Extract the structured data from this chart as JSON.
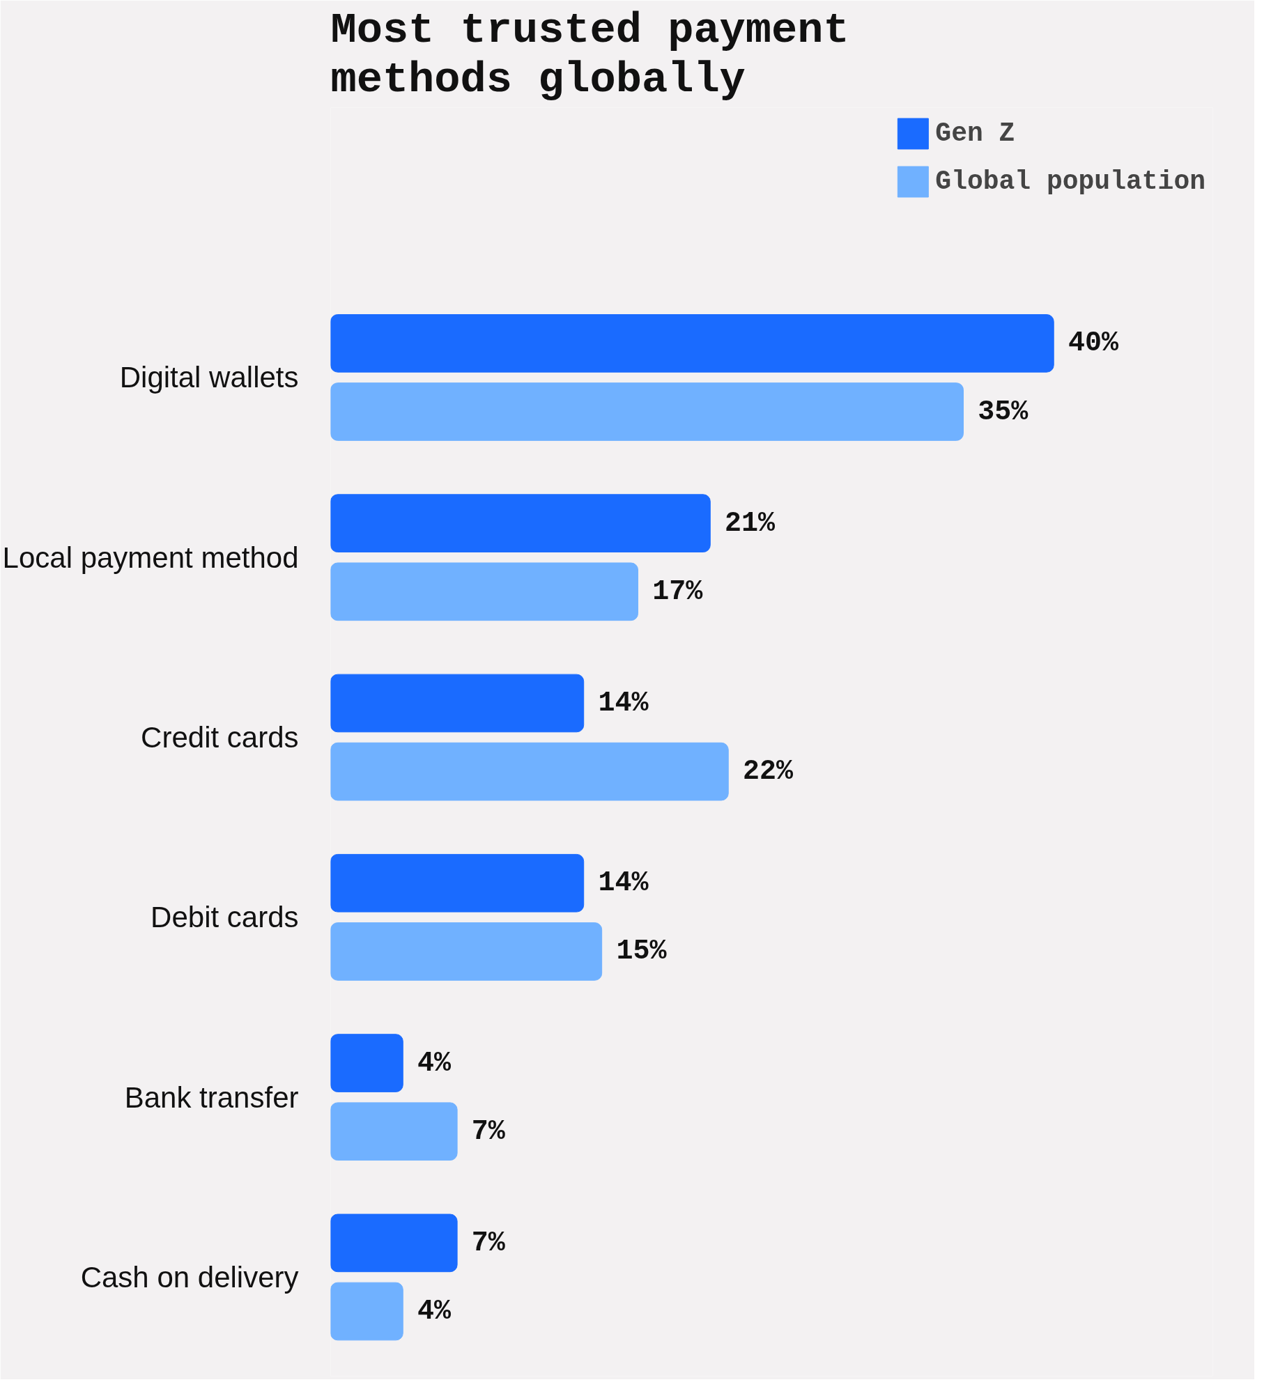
{
  "chart_data": {
    "type": "bar",
    "orientation": "horizontal",
    "title": "Most trusted payment methods globally",
    "categories": [
      "Digital wallets",
      "Local payment method",
      "Credit cards",
      "Debit cards",
      "Bank transfer",
      "Cash on delivery"
    ],
    "series": [
      {
        "name": "Gen Z",
        "color": "#1a6bff",
        "values": [
          40,
          21,
          14,
          14,
          4,
          7
        ],
        "value_labels": [
          "40%",
          "21%",
          "14%",
          "14%",
          "4%",
          "7%"
        ]
      },
      {
        "name": "Global population",
        "color": "#70b1ff",
        "values": [
          35,
          17,
          22,
          15,
          7,
          4
        ],
        "value_labels": [
          "35%",
          "17%",
          "22%",
          "15%",
          "7%",
          "4%"
        ]
      }
    ],
    "legend": "top right",
    "grid": false
  }
}
